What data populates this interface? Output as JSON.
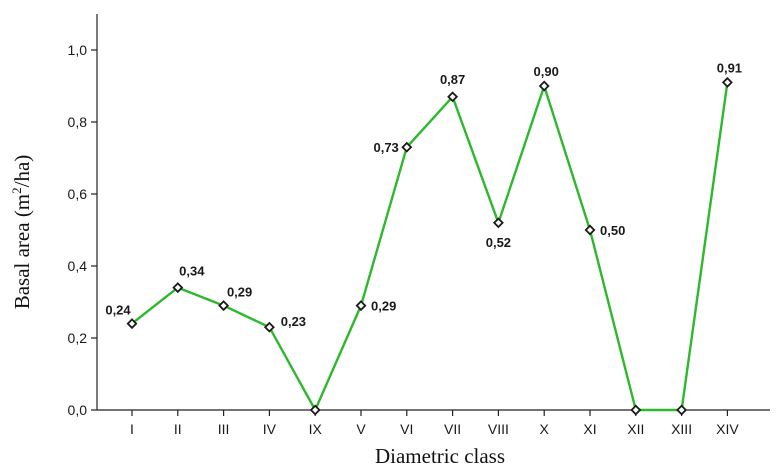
{
  "chart_data": {
    "type": "line",
    "title": "",
    "xlabel": "Diametric class",
    "ylabel_main": "Basal area (m",
    "ylabel_sup": "2",
    "ylabel_tail": "/ha)",
    "ylim": [
      0,
      1.1
    ],
    "yticks": [
      "0,0",
      "0,2",
      "0,4",
      "0,6",
      "0,8",
      "1,0"
    ],
    "ytick_values": [
      0,
      0.2,
      0.4,
      0.6,
      0.8,
      1.0
    ],
    "grid": false,
    "categories": [
      "I",
      "II",
      "III",
      "IV",
      "IX",
      "V",
      "VI",
      "VII",
      "VIII",
      "X",
      "XI",
      "XII",
      "XIII",
      "XIV"
    ],
    "series": [
      {
        "values": [
          0.24,
          0.34,
          0.29,
          0.23,
          0,
          0.29,
          0.73,
          0.87,
          0.52,
          0.9,
          0.5,
          0,
          0,
          0.91
        ],
        "data_labels": [
          "0,24",
          "0,34",
          "0,29",
          "0,23",
          "",
          "0,29",
          "0,73",
          "0,87",
          "0,52",
          "0,90",
          "0,50",
          "",
          "",
          "0,91"
        ],
        "color": "#2db82d",
        "marker_color": "#1a1a1a"
      }
    ]
  }
}
